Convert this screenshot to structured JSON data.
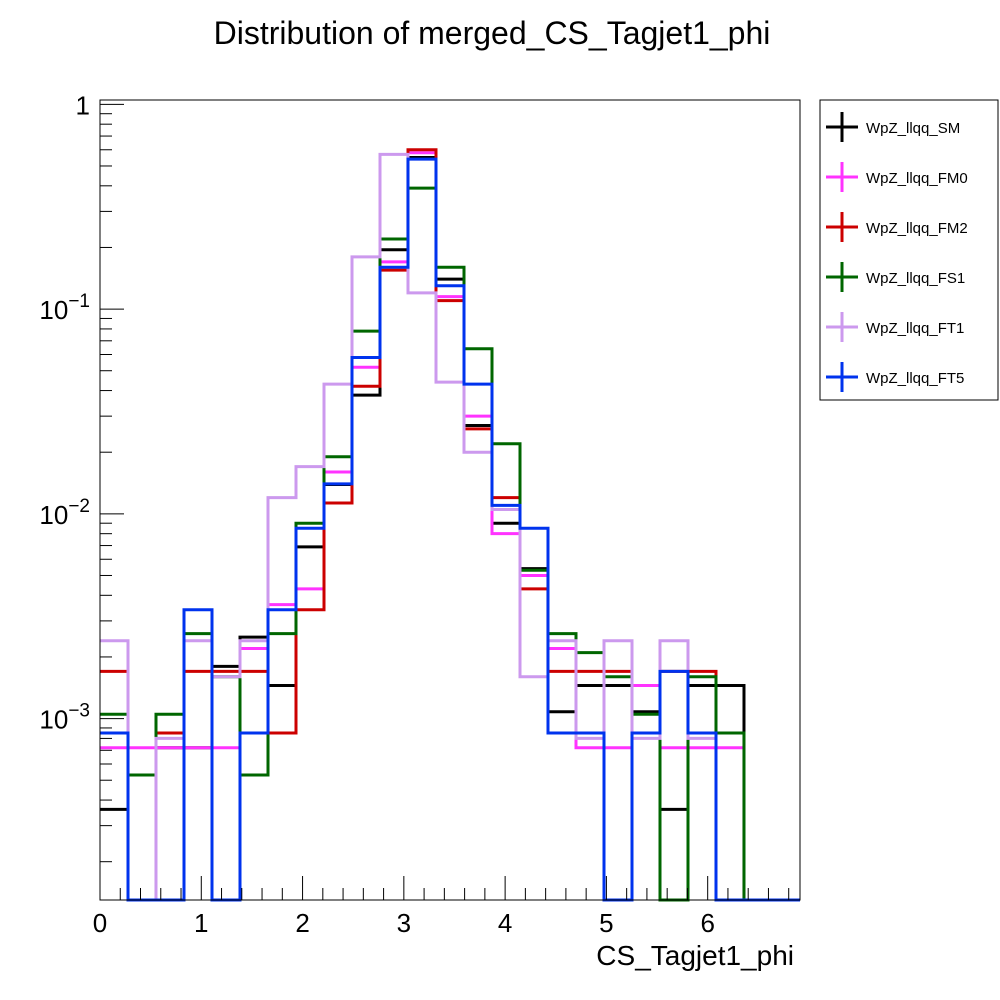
{
  "chart_data": {
    "type": "histogram",
    "title": "Distribution of merged_CS_Tagjet1_phi",
    "xlabel": "CS_Tagjet1_phi",
    "ylabel": "",
    "x_range": [
      0,
      6.9115
    ],
    "x_ticks": [
      0,
      1,
      2,
      3,
      4,
      5,
      6
    ],
    "y_scale": "log",
    "y_range": [
      0.00013,
      1.05
    ],
    "y_ticks": [
      {
        "value": 1,
        "label_base": "1",
        "label_exp": ""
      },
      {
        "value": 0.1,
        "label_base": "10",
        "label_exp": "−1"
      },
      {
        "value": 0.01,
        "label_base": "10",
        "label_exp": "−2"
      },
      {
        "value": 0.001,
        "label_base": "10",
        "label_exp": "−3"
      }
    ],
    "grid": false,
    "legend_position": "right",
    "bin_edges": [
      0,
      0.2765,
      0.5529,
      0.8294,
      1.1058,
      1.3823,
      1.6588,
      1.9352,
      2.2117,
      2.4881,
      2.7646,
      3.041,
      3.3175,
      3.594,
      3.8704,
      4.1469,
      4.4233,
      4.6998,
      4.9763,
      5.2527,
      5.5292,
      5.8056,
      6.0821,
      6.3585,
      6.635,
      6.9115
    ],
    "series": [
      {
        "name": "WpZ_llqq_SM",
        "color": "#000000",
        "values": [
          0.00036,
          0,
          0.00072,
          0.00072,
          0.0018,
          0.0025,
          0.00145,
          0.0069,
          0.0139,
          0.038,
          0.195,
          0.55,
          0.14,
          0.027,
          0.009,
          0.0054,
          0.00108,
          0.00145,
          0.00145,
          0.00108,
          0.00036,
          0.00145,
          0.00145,
          0,
          0
        ]
      },
      {
        "name": "WpZ_llqq_FM0",
        "color": "#ff33ff",
        "values": [
          0.00072,
          0.00072,
          0.00072,
          0.00072,
          0.00072,
          0.0022,
          0.0036,
          0.0043,
          0.016,
          0.052,
          0.17,
          0.58,
          0.115,
          0.03,
          0.008,
          0.005,
          0.0022,
          0.00072,
          0.00072,
          0.00145,
          0.00072,
          0.00072,
          0.00072,
          0,
          0
        ]
      },
      {
        "name": "WpZ_llqq_FM2",
        "color": "#cc0000",
        "values": [
          0.0017,
          0,
          0.00085,
          0.0017,
          0.0017,
          0.0017,
          0.00085,
          0.0034,
          0.0113,
          0.042,
          0.155,
          0.6,
          0.11,
          0.026,
          0.012,
          0.0043,
          0.0017,
          0.0017,
          0.0017,
          0.00085,
          0.0017,
          0.0017,
          0.00085,
          0,
          0
        ]
      },
      {
        "name": "WpZ_llqq_FS1",
        "color": "#006600",
        "values": [
          0.00105,
          0.00053,
          0.00105,
          0.0026,
          0.0016,
          0.00053,
          0.0026,
          0.009,
          0.019,
          0.078,
          0.22,
          0.39,
          0.16,
          0.064,
          0.022,
          0.0053,
          0.0026,
          0.0021,
          0.0016,
          0.00105,
          0,
          0.0016,
          0.00085,
          0,
          0
        ]
      },
      {
        "name": "WpZ_llqq_FT1",
        "color": "#cc99ee",
        "values": [
          0.0024,
          0,
          0.0008,
          0.0024,
          0.0016,
          0.0024,
          0.012,
          0.017,
          0.043,
          0.18,
          0.57,
          0.12,
          0.044,
          0.02,
          0.0105,
          0.0016,
          0.0024,
          0.0008,
          0.0024,
          0.0008,
          0.0024,
          0.0008,
          0,
          0,
          0
        ]
      },
      {
        "name": "WpZ_llqq_FT5",
        "color": "#0033ee",
        "values": [
          0.00085,
          0,
          0,
          0.0034,
          0,
          0.00085,
          0.0034,
          0.0085,
          0.014,
          0.058,
          0.16,
          0.54,
          0.13,
          0.043,
          0.011,
          0.0085,
          0.00085,
          0.00085,
          0,
          0.00085,
          0.0017,
          0.00085,
          0,
          0,
          0
        ]
      }
    ]
  }
}
